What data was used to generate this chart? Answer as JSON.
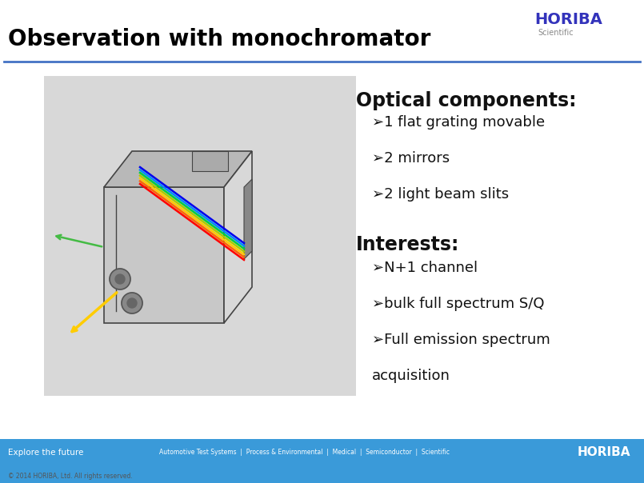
{
  "title": "Observation with monochromator",
  "title_color": "#000000",
  "title_fontsize": 20,
  "bg_color": "#ffffff",
  "header_line_color": "#4472c4",
  "optical_header": "Optical components:",
  "optical_bullets": [
    "➢1 flat grating movable",
    "➢2 mirrors",
    "➢2 light beam slits"
  ],
  "interests_header": "Interests:",
  "interests_bullets": [
    "➢N+1 channel",
    "➢bulk full spectrum S/Q",
    "➢Full emission spectrum\nacquisition"
  ],
  "footer_bg": "#3a9ad9",
  "footer_left": "Explore the future",
  "footer_center": "Automotive Test Systems  |  Process & Environmental  |  Medical  |  Semiconductor  |  Scientific",
  "footer_copyright": "© 2014 HORIBA, Ltd. All rights reserved.",
  "footer_right": "HORIBA",
  "horiba_blue": "#3333bb",
  "section_header_fontsize": 17,
  "bullet_fontsize": 13,
  "image_placeholder_color": "#d8d8d8"
}
